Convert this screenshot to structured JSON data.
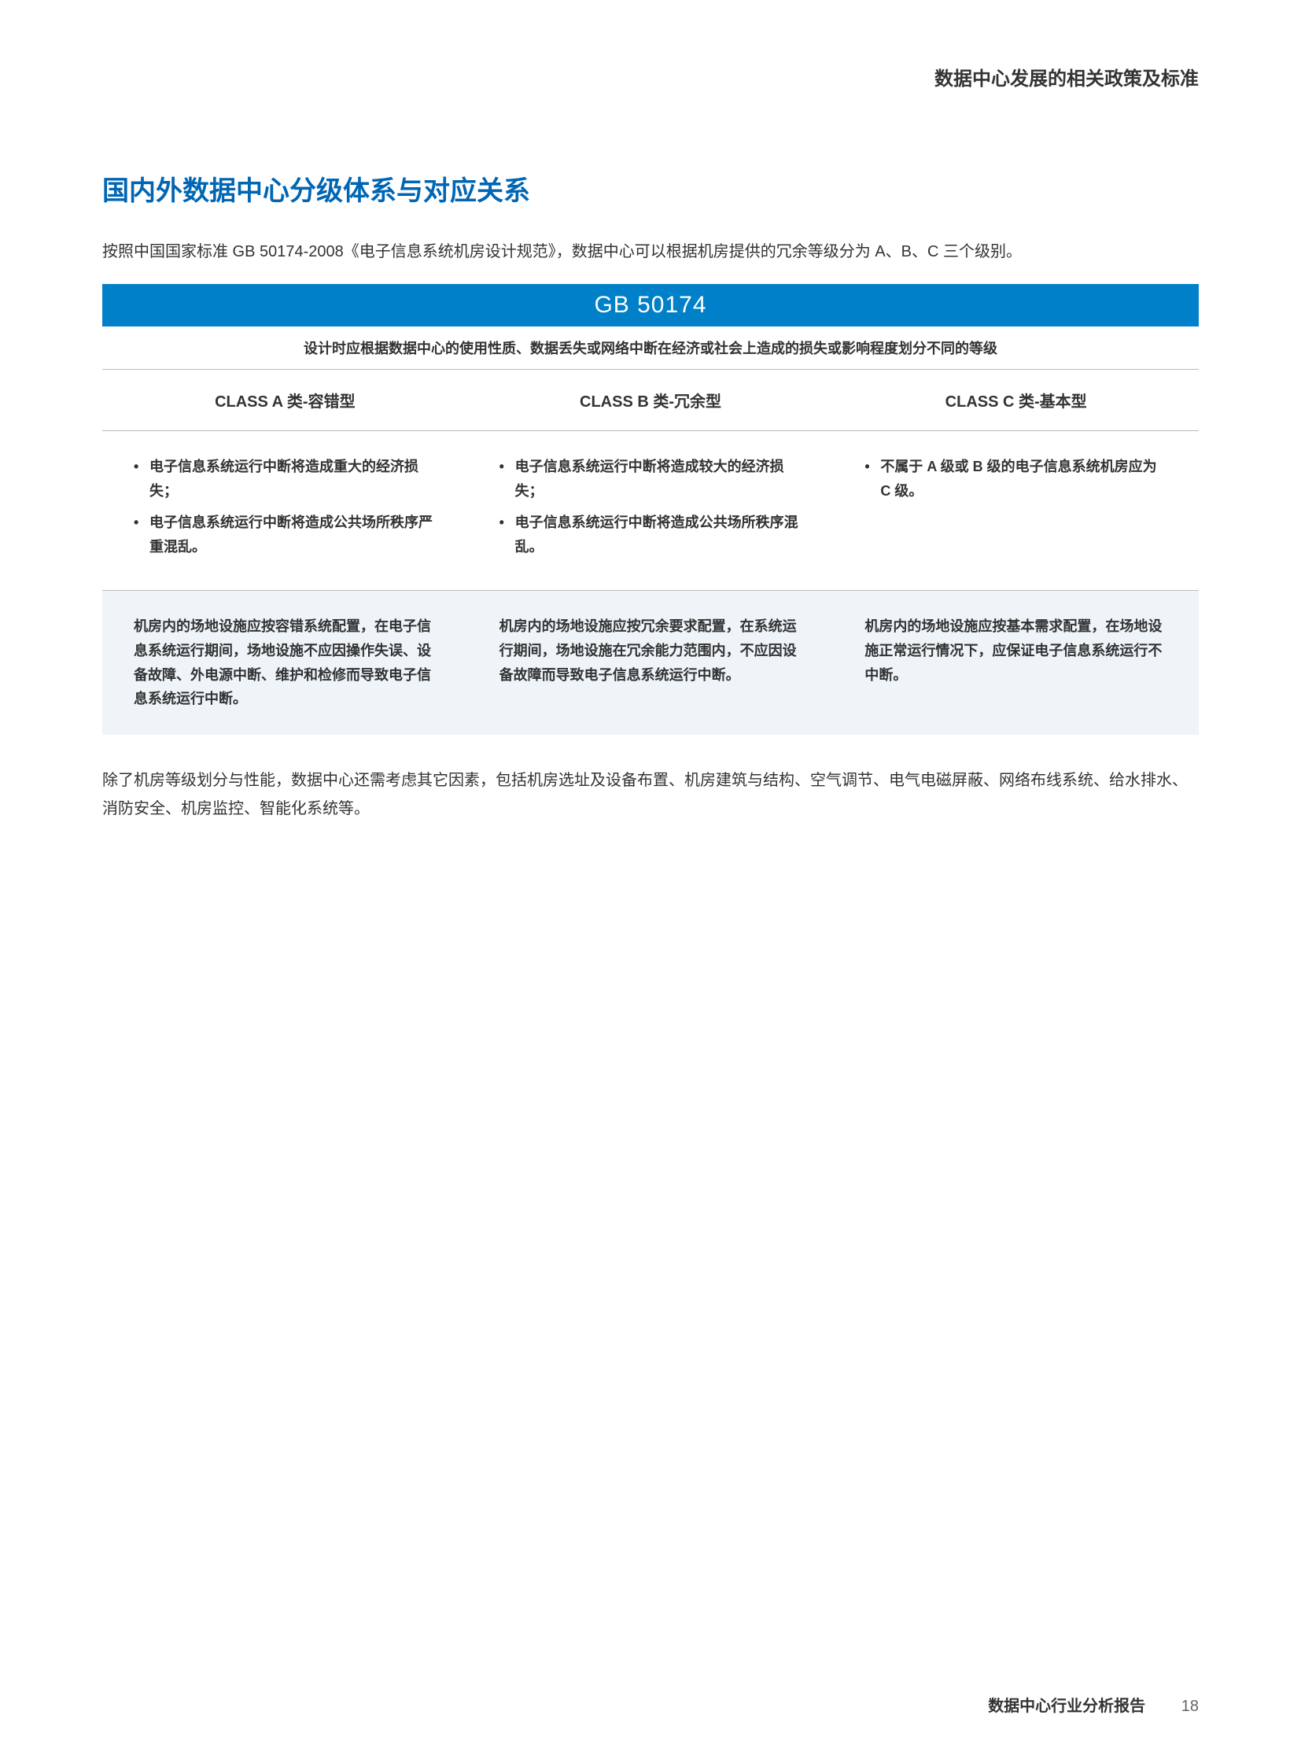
{
  "header": {
    "title": "数据中心发展的相关政策及标准"
  },
  "section": {
    "title": "国内外数据中心分级体系与对应关系",
    "intro": "按照中国国家标准 GB 50174-2008《电子信息系统机房设计规范》，数据中心可以根据机房提供的冗余等级分为 A、B、C 三个级别。"
  },
  "table": {
    "banner": "GB 50174",
    "sub_banner": "设计时应根据数据中心的使用性质、数据丢失或网络中断在经济或社会上造成的损失或影响程度划分不同的等级",
    "columns": [
      {
        "class_label": "CLASS A 类-容错型",
        "bullets": [
          "电子信息系统运行中断将造成重大的经济损失；",
          "电子信息系统运行中断将造成公共场所秩序严重混乱。"
        ],
        "design": "机房内的场地设施应按容错系统配置，在电子信息系统运行期间，场地设施不应因操作失误、设备故障、外电源中断、维护和检修而导致电子信息系统运行中断。"
      },
      {
        "class_label": "CLASS B 类-冗余型",
        "bullets": [
          "电子信息系统运行中断将造成较大的经济损失；",
          "电子信息系统运行中断将造成公共场所秩序混乱。"
        ],
        "design": "机房内的场地设施应按冗余要求配置，在系统运行期间，场地设施在冗余能力范围内，不应因设备故障而导致电子信息系统运行中断。"
      },
      {
        "class_label": "CLASS C 类-基本型",
        "bullets": [
          "不属于 A 级或 B 级的电子信息系统机房应为 C 级。"
        ],
        "design": "机房内的场地设施应按基本需求配置，在场地设施正常运行情况下，应保证电子信息系统运行不中断。"
      }
    ]
  },
  "below": "除了机房等级划分与性能，数据中心还需考虑其它因素，包括机房选址及设备布置、机房建筑与结构、空气调节、电气电磁屏蔽、网络布线系统、给水排水、消防安全、机房监控、智能化系统等。",
  "footer": {
    "label": "数据中心行业分析报告",
    "page": "18"
  },
  "colors": {
    "accent": "#0066b3",
    "banner_bg": "#0080c8",
    "design_bg": "#eef4f8",
    "text": "#333333",
    "border": "#bbbbbb"
  }
}
